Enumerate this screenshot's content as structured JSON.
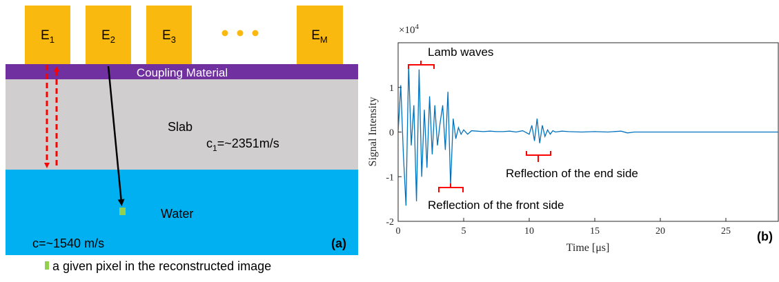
{
  "panel_a": {
    "elements": [
      {
        "base": "E",
        "sub": "1"
      },
      {
        "base": "E",
        "sub": "2"
      },
      {
        "base": "E",
        "sub": "3"
      },
      {
        "base": "E",
        "sub": "M"
      }
    ],
    "coupling_label": "Coupling Material",
    "slab_label": "Slab",
    "slab_speed_prefix": "c",
    "slab_speed_sub": "1",
    "slab_speed_value": "=~2351m/s",
    "water_label": "Water",
    "water_speed": "c=~1540 m/s",
    "panel_label": "(a)",
    "legend_text": "a given pixel in the reconstructed image",
    "colors": {
      "element": "#f9b90e",
      "coupling": "#7030a0",
      "slab": "#d0cece",
      "water": "#00b0f0",
      "pixel": "#92d050",
      "reflection_arrow": "#ff0000",
      "ray_arrow": "#000000"
    }
  },
  "panel_b": {
    "panel_label": "(b)",
    "exponent_label": "×10",
    "exponent_power": "4",
    "annotations": {
      "lamb": "Lamb waves",
      "front": "Reflection of the front side",
      "end": "Reflection of the end side"
    }
  },
  "chart_data": {
    "type": "line",
    "xlabel": "Time [μs]",
    "ylabel": "Signal Intensity",
    "xlim": [
      0,
      29
    ],
    "ylim": [
      -2,
      2
    ],
    "x_ticks": [
      "0",
      "5",
      "10",
      "15",
      "20",
      "25"
    ],
    "y_ticks": [
      "-2",
      "-1",
      "0",
      "1"
    ],
    "series": [
      {
        "color": "#0072bd",
        "x": [
          0.0,
          0.2,
          0.4,
          0.6,
          0.8,
          1.0,
          1.2,
          1.4,
          1.6,
          1.8,
          2.0,
          2.2,
          2.4,
          2.6,
          2.8,
          3.0,
          3.2,
          3.4,
          3.6,
          3.8,
          4.0,
          4.2,
          4.4,
          4.6,
          4.8,
          5.0,
          5.3,
          5.6,
          6.0,
          6.5,
          7.0,
          7.5,
          8.0,
          8.5,
          9.0,
          9.5,
          10.0,
          10.2,
          10.4,
          10.6,
          10.8,
          11.0,
          11.2,
          11.4,
          11.6,
          11.8,
          12.0,
          12.5,
          13.0,
          14.0,
          15.0,
          16.0,
          17.0,
          17.5,
          18.0,
          19.0,
          20.0,
          22.0,
          24.0,
          26.0,
          29.0
        ],
        "y": [
          0.0,
          1.05,
          -0.5,
          -1.65,
          1.5,
          -0.3,
          0.6,
          -1.55,
          1.4,
          -1.0,
          0.5,
          -0.8,
          0.8,
          -0.5,
          0.6,
          -0.3,
          0.2,
          0.6,
          -0.4,
          0.9,
          -1.2,
          0.3,
          -0.15,
          0.1,
          -0.05,
          0.05,
          -0.05,
          0.03,
          0.02,
          0.01,
          0.02,
          0.01,
          0.01,
          0.02,
          0.0,
          0.03,
          -0.05,
          0.15,
          -0.2,
          0.3,
          -0.25,
          0.15,
          -0.1,
          0.05,
          -0.05,
          0.03,
          0.0,
          0.02,
          0.01,
          0.0,
          0.01,
          0.0,
          0.02,
          -0.02,
          0.0,
          0.0,
          0.0,
          0.0,
          0.0,
          0.0,
          0.0
        ]
      }
    ]
  }
}
